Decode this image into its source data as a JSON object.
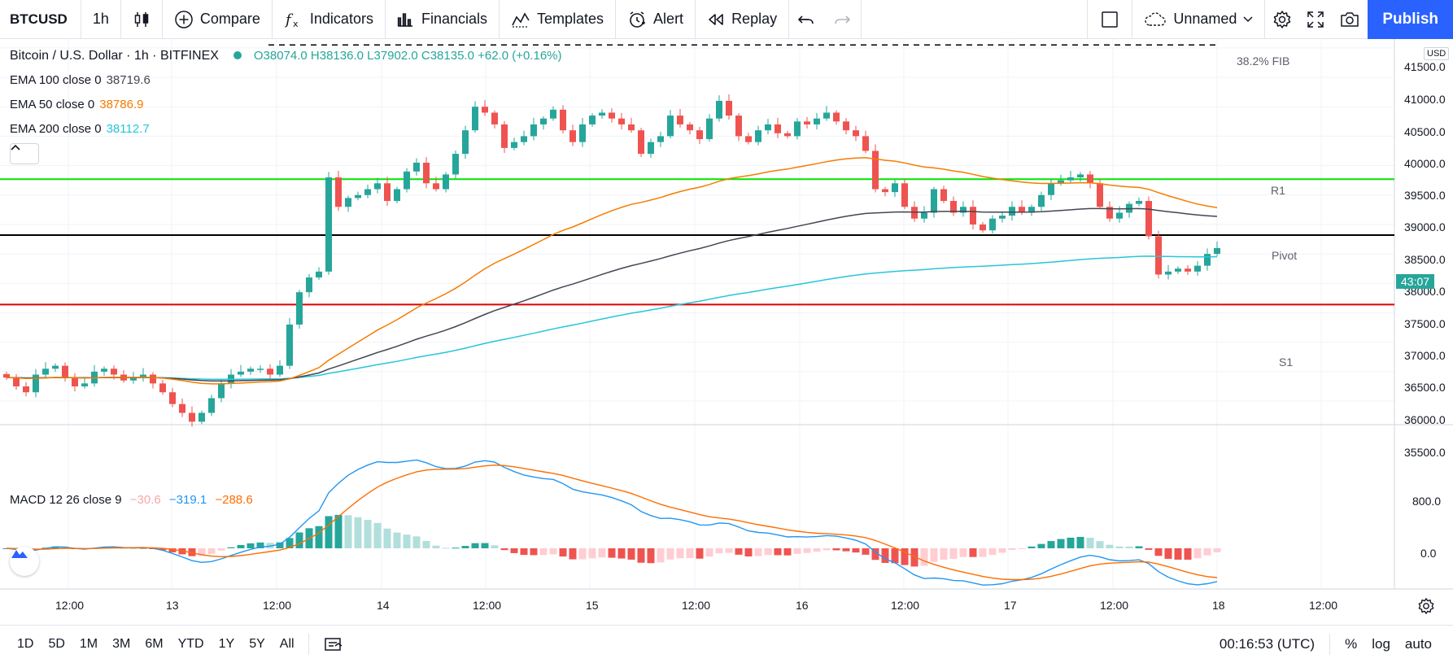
{
  "toolbar": {
    "symbol": "BTCUSD",
    "interval": "1h",
    "compare": "Compare",
    "indicators": "Indicators",
    "financials": "Financials",
    "templates": "Templates",
    "alert": "Alert",
    "replay": "Replay",
    "layout_name": "Unnamed",
    "publish": "Publish"
  },
  "legend": {
    "title": "Bitcoin / U.S. Dollar · 1h · BITFINEX",
    "ohlc": "O38074.0  H38136.0  L37902.0  C38135.0  +62.0 (+0.16%)",
    "ema100_label": "EMA 100 close 0",
    "ema100_value": "38719.6",
    "ema50_label": "EMA 50 close 0",
    "ema50_value": "38786.9",
    "ema200_label": "EMA 200 close 0",
    "ema200_value": "38112.7",
    "macd_label": "MACD 12 26 close 9",
    "macd_hist": "−30.6",
    "macd_line": "−319.1",
    "macd_signal": "−288.6"
  },
  "price_axis": {
    "currency": "USD",
    "ticks": [
      "41500.0",
      "41000.0",
      "40500.0",
      "40000.0",
      "39500.0",
      "39000.0",
      "38500.0",
      "38000.0",
      "37500.0",
      "37000.0",
      "36500.0",
      "36000.0",
      "35500.0"
    ],
    "current_tag": "43:07",
    "macd_ticks": [
      "800.0",
      "0.0"
    ]
  },
  "time_axis": {
    "labels": [
      "12:00",
      "13",
      "12:00",
      "14",
      "12:00",
      "15",
      "12:00",
      "16",
      "12:00",
      "17",
      "12:00",
      "18",
      "12:00"
    ]
  },
  "levels": {
    "fib": "38.2% FIB",
    "r1": "R1",
    "pivot": "Pivot",
    "s1": "S1"
  },
  "colors": {
    "up": "#26a69a",
    "down": "#ef5350",
    "ema50": "#f57c00",
    "ema100": "#434651",
    "ema200": "#26c6da",
    "r1": "#00e600",
    "pivot": "#000000",
    "s1": "#e00000",
    "macd_line": "#2196f3",
    "signal_line": "#ff6d00",
    "accent": "#2962ff"
  },
  "bottombar": {
    "ranges": [
      "1D",
      "5D",
      "1M",
      "3M",
      "6M",
      "YTD",
      "1Y",
      "5Y",
      "All"
    ],
    "time": "00:16:53 (UTC)",
    "percent": "%",
    "log": "log",
    "auto": "auto"
  },
  "chart_data": {
    "type": "candlestick",
    "ylim": [
      35100,
      41650
    ],
    "closes": [
      35900,
      35750,
      35650,
      35950,
      36050,
      36100,
      35900,
      35750,
      35800,
      36000,
      36050,
      35950,
      35850,
      35900,
      35950,
      35800,
      35650,
      35450,
      35300,
      35150,
      35300,
      35550,
      35800,
      35950,
      36000,
      36050,
      36050,
      35950,
      36100,
      36800,
      37350,
      37600,
      37700,
      39300,
      38800,
      38950,
      39000,
      39100,
      39200,
      38900,
      39100,
      39400,
      39550,
      39200,
      39100,
      39350,
      39700,
      40100,
      40500,
      40400,
      40200,
      39800,
      39900,
      40000,
      40200,
      40300,
      40450,
      40100,
      39900,
      40200,
      40350,
      40400,
      40300,
      40200,
      40100,
      39700,
      39900,
      40000,
      40350,
      40200,
      40100,
      39950,
      40300,
      40600,
      40350,
      40000,
      39900,
      40100,
      40200,
      40050,
      40000,
      40250,
      40200,
      40300,
      40400,
      40250,
      40100,
      40000,
      39750,
      39100,
      39050,
      39200,
      38800,
      38600,
      38700,
      39100,
      38900,
      38700,
      38800,
      38500,
      38400,
      38600,
      38650,
      38800,
      38700,
      38800,
      39000,
      39200,
      39250,
      39300,
      39350,
      39200,
      38800,
      38600,
      38700,
      38850,
      38900,
      38300,
      37650,
      37700,
      37750,
      37700,
      37800,
      38000,
      38100
    ],
    "r1": 39270,
    "pivot": 38320,
    "s1": 37140,
    "fib_382": 41550
  }
}
